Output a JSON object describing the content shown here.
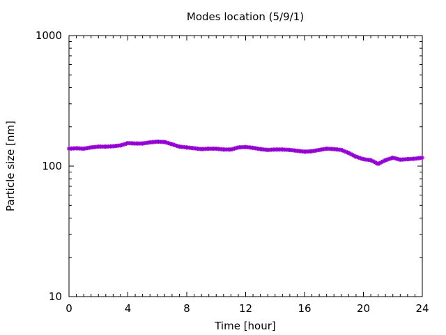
{
  "chart_data": {
    "type": "scatter",
    "title": "Modes location (5/9/1)",
    "xlabel": "Time [hour]",
    "ylabel": "Particle size [nm]",
    "xlim": [
      0,
      24
    ],
    "ylim": [
      10,
      1000
    ],
    "y_scale": "log",
    "x_ticks": [
      0,
      4,
      8,
      12,
      16,
      20,
      24
    ],
    "x_tick_labels": [
      "0",
      "4",
      "8",
      "12",
      "16",
      "20",
      "24"
    ],
    "y_ticks": [
      10,
      100,
      1000
    ],
    "y_tick_labels": [
      "10",
      "100",
      "1000"
    ],
    "grid": false,
    "marker_color": "#9400d3",
    "series": [
      {
        "x": [
          0,
          0.5,
          1,
          1.5,
          2,
          2.5,
          3,
          3.5,
          4,
          4.5,
          5,
          5.5,
          6,
          6.5,
          7,
          7.5,
          8,
          8.5,
          9,
          9.5,
          10,
          10.5,
          11,
          11.5,
          12,
          12.5,
          13,
          13.5,
          14,
          14.5,
          15,
          15.5,
          16,
          16.5,
          17,
          17.5,
          18,
          18.5,
          19,
          19.5,
          20,
          20.5,
          21,
          21.5,
          22,
          22.5,
          23,
          23.5,
          24
        ],
        "y": [
          136,
          137,
          136,
          139,
          141,
          141,
          142,
          144,
          150,
          149,
          149,
          152,
          154,
          153,
          147,
          141,
          139,
          137,
          135,
          136,
          136,
          134,
          134,
          139,
          140,
          138,
          135,
          133,
          134,
          134,
          133,
          131,
          129,
          130,
          133,
          136,
          135,
          133,
          126,
          118,
          113,
          111,
          104,
          111,
          116,
          112,
          113,
          114,
          116
        ]
      }
    ]
  }
}
